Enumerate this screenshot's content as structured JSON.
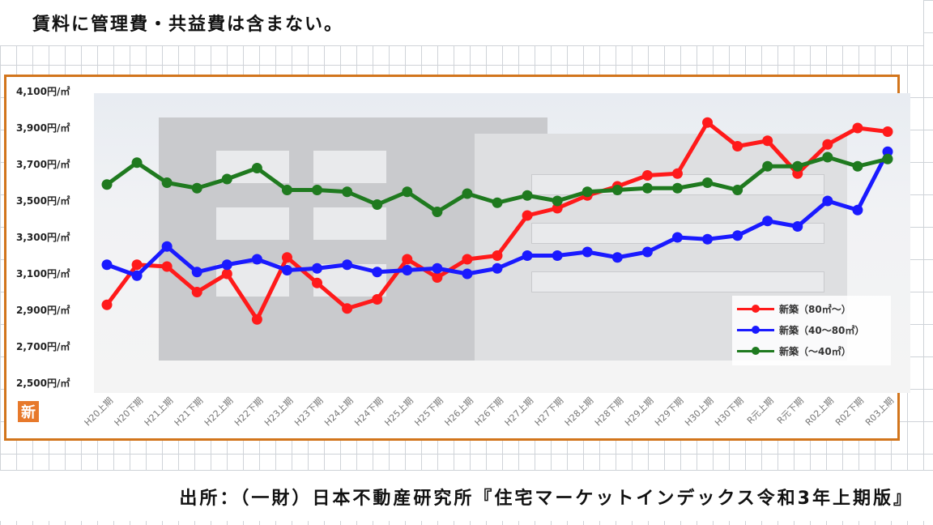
{
  "note": "賃料に管理費・共益費は含まない。",
  "source": "出所：（一財）日本不動産研究所『住宅マーケットインデックス令和3年上期版』",
  "badge": "新",
  "colors": {
    "frame": "#d2751c",
    "badge": "#e7792b"
  },
  "chart_data": {
    "type": "line",
    "title": "",
    "xlabel": "",
    "ylabel": "",
    "ylim": [
      2500,
      4100
    ],
    "ytick_labels": [
      "4,100円/㎡",
      "3,900円/㎡",
      "3,700円/㎡",
      "3,500円/㎡",
      "3,300円/㎡",
      "3,100円/㎡",
      "2,900円/㎡",
      "2,700円/㎡",
      "2,500円/㎡"
    ],
    "yticks": [
      4100,
      3900,
      3700,
      3500,
      3300,
      3100,
      2900,
      2700,
      2500
    ],
    "grid": false,
    "legend_position": "bottom-right",
    "categories": [
      "H20上期",
      "H20下期",
      "H21上期",
      "H21下期",
      "H22上期",
      "H22下期",
      "H23上期",
      "H23下期",
      "H24上期",
      "H24下期",
      "H25上期",
      "H25下期",
      "H26上期",
      "H26下期",
      "H27上期",
      "H27下期",
      "H28上期",
      "H28下期",
      "H29上期",
      "H29下期",
      "H30上期",
      "H30下期",
      "R元上期",
      "R元下期",
      "R02上期",
      "R02下期",
      "R03上期"
    ],
    "series": [
      {
        "name": "新築（80㎡～）",
        "color": "#ff1a1a",
        "values": [
          2930,
          3150,
          3140,
          3000,
          3100,
          2850,
          3190,
          3050,
          2910,
          2960,
          3180,
          3080,
          3180,
          3200,
          3420,
          3460,
          3530,
          3580,
          3640,
          3650,
          3930,
          3800,
          3830,
          3650,
          3810,
          3900,
          3880
        ]
      },
      {
        "name": "新築（40～80㎡）",
        "color": "#1a1aff",
        "values": [
          3150,
          3090,
          3250,
          3110,
          3150,
          3180,
          3120,
          3130,
          3150,
          3110,
          3120,
          3130,
          3100,
          3130,
          3200,
          3200,
          3220,
          3190,
          3220,
          3300,
          3290,
          3310,
          3390,
          3360,
          3500,
          3450,
          3770
        ]
      },
      {
        "name": "新築（～40㎡）",
        "color": "#1f7a1f",
        "values": [
          3590,
          3710,
          3600,
          3570,
          3620,
          3680,
          3560,
          3560,
          3550,
          3480,
          3550,
          3440,
          3540,
          3490,
          3530,
          3500,
          3550,
          3560,
          3570,
          3570,
          3600,
          3560,
          3690,
          3690,
          3740,
          3690,
          3730
        ]
      }
    ]
  }
}
